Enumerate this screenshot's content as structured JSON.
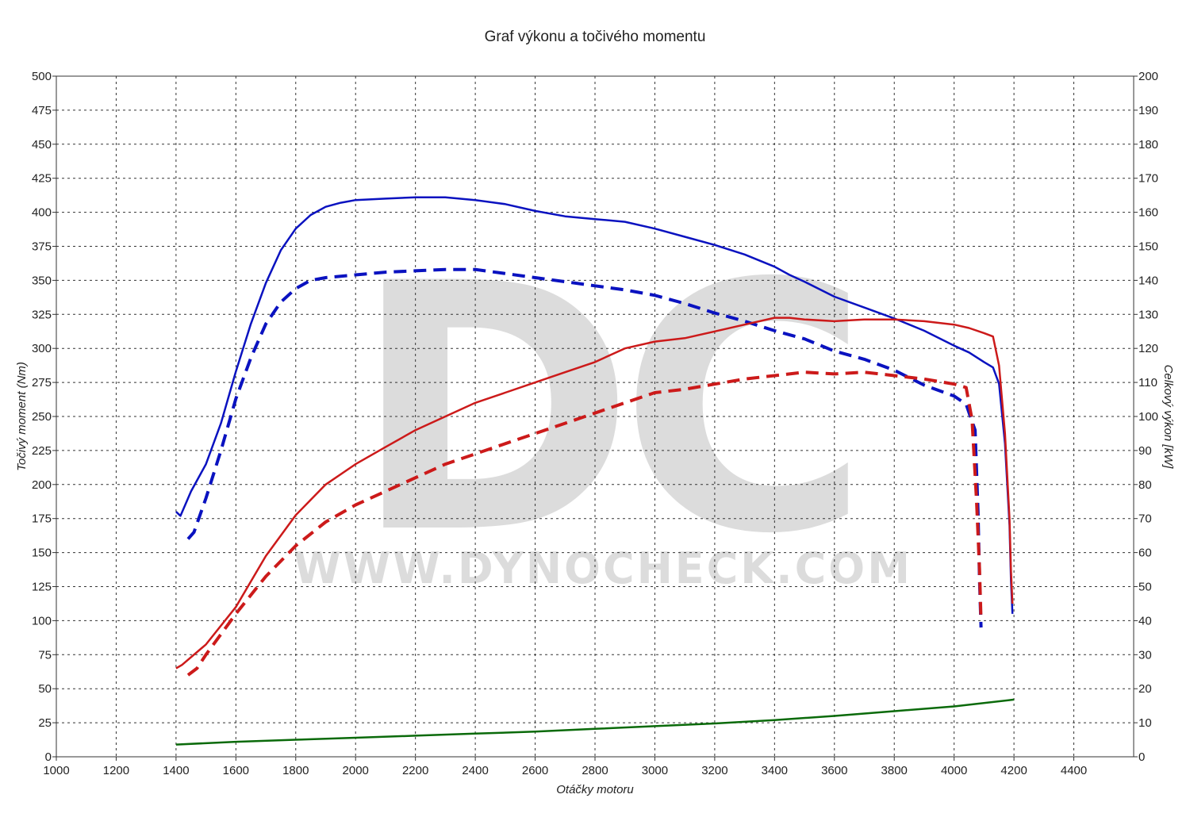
{
  "chart_data": {
    "type": "line",
    "title": "Graf výkonu a točivého momentu",
    "xlabel": "Otáčky motoru",
    "ylabel_left": "Točivý moment (Nm)",
    "ylabel_right": "Celkový výkon [kW]",
    "xlim": [
      1000,
      4600
    ],
    "ylim_left": [
      0,
      500
    ],
    "ylim_right": [
      0,
      200
    ],
    "x_ticks": [
      1000,
      1200,
      1400,
      1600,
      1800,
      2000,
      2200,
      2400,
      2600,
      2800,
      3000,
      3200,
      3400,
      3600,
      3800,
      4000,
      4200,
      4400
    ],
    "y_left_ticks": [
      0,
      25,
      50,
      75,
      100,
      125,
      150,
      175,
      200,
      225,
      250,
      275,
      300,
      325,
      350,
      375,
      400,
      425,
      450,
      475,
      500
    ],
    "y_right_ticks": [
      0,
      10,
      20,
      30,
      40,
      50,
      60,
      70,
      80,
      90,
      100,
      110,
      120,
      130,
      140,
      150,
      160,
      170,
      180,
      190,
      200
    ],
    "grid": true,
    "watermark": {
      "logo": "DC",
      "text": "WWW.DYNOCHECK.COM"
    },
    "series": [
      {
        "axis": "left",
        "color": "#0a12c0",
        "dashed": false,
        "points": [
          [
            1400,
            180
          ],
          [
            1415,
            177
          ],
          [
            1450,
            195
          ],
          [
            1500,
            215
          ],
          [
            1550,
            245
          ],
          [
            1600,
            283
          ],
          [
            1650,
            318
          ],
          [
            1700,
            348
          ],
          [
            1750,
            372
          ],
          [
            1800,
            388
          ],
          [
            1850,
            398
          ],
          [
            1900,
            404
          ],
          [
            1950,
            407
          ],
          [
            2000,
            409
          ],
          [
            2100,
            410
          ],
          [
            2200,
            411
          ],
          [
            2300,
            411
          ],
          [
            2400,
            409
          ],
          [
            2500,
            406
          ],
          [
            2600,
            401
          ],
          [
            2700,
            397
          ],
          [
            2800,
            395
          ],
          [
            2900,
            393
          ],
          [
            3000,
            388
          ],
          [
            3100,
            382
          ],
          [
            3200,
            376
          ],
          [
            3300,
            369
          ],
          [
            3400,
            360
          ],
          [
            3450,
            354
          ],
          [
            3500,
            349
          ],
          [
            3600,
            338
          ],
          [
            3700,
            330
          ],
          [
            3800,
            322
          ],
          [
            3900,
            313
          ],
          [
            4000,
            302
          ],
          [
            4050,
            297
          ],
          [
            4100,
            290
          ],
          [
            4130,
            286
          ],
          [
            4150,
            274
          ],
          [
            4170,
            230
          ],
          [
            4185,
            170
          ],
          [
            4190,
            130
          ],
          [
            4195,
            105
          ]
        ]
      },
      {
        "axis": "left",
        "color": "#0a12c0",
        "dashed": true,
        "points": [
          [
            1440,
            160
          ],
          [
            1460,
            165
          ],
          [
            1500,
            190
          ],
          [
            1550,
            225
          ],
          [
            1600,
            263
          ],
          [
            1650,
            293
          ],
          [
            1700,
            318
          ],
          [
            1750,
            334
          ],
          [
            1800,
            344
          ],
          [
            1850,
            350
          ],
          [
            1900,
            352
          ],
          [
            2000,
            354
          ],
          [
            2100,
            356
          ],
          [
            2200,
            357
          ],
          [
            2300,
            358
          ],
          [
            2400,
            358
          ],
          [
            2500,
            355
          ],
          [
            2600,
            352
          ],
          [
            2700,
            349
          ],
          [
            2800,
            346
          ],
          [
            2900,
            343
          ],
          [
            3000,
            339
          ],
          [
            3100,
            333
          ],
          [
            3200,
            326
          ],
          [
            3300,
            320
          ],
          [
            3400,
            313
          ],
          [
            3500,
            307
          ],
          [
            3600,
            298
          ],
          [
            3700,
            292
          ],
          [
            3800,
            284
          ],
          [
            3900,
            273
          ],
          [
            4000,
            265
          ],
          [
            4040,
            259
          ],
          [
            4070,
            240
          ],
          [
            4080,
            180
          ],
          [
            4085,
            130
          ],
          [
            4090,
            95
          ]
        ]
      },
      {
        "axis": "right",
        "color": "#cc1a1a",
        "dashed": false,
        "points": [
          [
            1400,
            26
          ],
          [
            1420,
            27
          ],
          [
            1500,
            33
          ],
          [
            1600,
            44
          ],
          [
            1700,
            59
          ],
          [
            1800,
            71
          ],
          [
            1900,
            80
          ],
          [
            2000,
            86
          ],
          [
            2100,
            91
          ],
          [
            2200,
            96
          ],
          [
            2300,
            100
          ],
          [
            2400,
            104
          ],
          [
            2500,
            107
          ],
          [
            2600,
            110
          ],
          [
            2700,
            113
          ],
          [
            2800,
            116
          ],
          [
            2900,
            120
          ],
          [
            3000,
            122
          ],
          [
            3100,
            123
          ],
          [
            3200,
            125
          ],
          [
            3300,
            127
          ],
          [
            3400,
            129
          ],
          [
            3450,
            129
          ],
          [
            3500,
            128.5
          ],
          [
            3600,
            128
          ],
          [
            3700,
            128.5
          ],
          [
            3800,
            128.5
          ],
          [
            3900,
            128
          ],
          [
            4000,
            127
          ],
          [
            4050,
            126
          ],
          [
            4100,
            124.5
          ],
          [
            4130,
            123.5
          ],
          [
            4150,
            115
          ],
          [
            4170,
            95
          ],
          [
            4185,
            70
          ],
          [
            4190,
            55
          ],
          [
            4195,
            45
          ]
        ]
      },
      {
        "axis": "right",
        "color": "#cc1a1a",
        "dashed": true,
        "points": [
          [
            1440,
            24
          ],
          [
            1470,
            26
          ],
          [
            1500,
            30
          ],
          [
            1600,
            42
          ],
          [
            1700,
            53
          ],
          [
            1800,
            62
          ],
          [
            1900,
            69
          ],
          [
            2000,
            74
          ],
          [
            2100,
            78
          ],
          [
            2200,
            82
          ],
          [
            2300,
            86
          ],
          [
            2400,
            89
          ],
          [
            2500,
            92
          ],
          [
            2600,
            95
          ],
          [
            2700,
            98
          ],
          [
            2800,
            101
          ],
          [
            2900,
            104
          ],
          [
            3000,
            107
          ],
          [
            3100,
            108
          ],
          [
            3200,
            109.5
          ],
          [
            3300,
            111
          ],
          [
            3400,
            112
          ],
          [
            3500,
            113
          ],
          [
            3600,
            112.5
          ],
          [
            3700,
            113
          ],
          [
            3800,
            112
          ],
          [
            3900,
            111
          ],
          [
            4000,
            109.5
          ],
          [
            4040,
            108.5
          ],
          [
            4060,
            99
          ],
          [
            4075,
            75
          ],
          [
            4085,
            55
          ],
          [
            4090,
            40
          ]
        ]
      },
      {
        "axis": "left",
        "color": "#0a6a0a",
        "dashed": false,
        "points": [
          [
            1400,
            9
          ],
          [
            1600,
            11
          ],
          [
            1800,
            12.5
          ],
          [
            2000,
            14
          ],
          [
            2200,
            15.5
          ],
          [
            2400,
            17
          ],
          [
            2600,
            18.5
          ],
          [
            2800,
            20.5
          ],
          [
            3000,
            22.5
          ],
          [
            3200,
            24.5
          ],
          [
            3400,
            27
          ],
          [
            3600,
            30
          ],
          [
            3800,
            33.5
          ],
          [
            4000,
            37
          ],
          [
            4200,
            42
          ]
        ]
      }
    ]
  }
}
